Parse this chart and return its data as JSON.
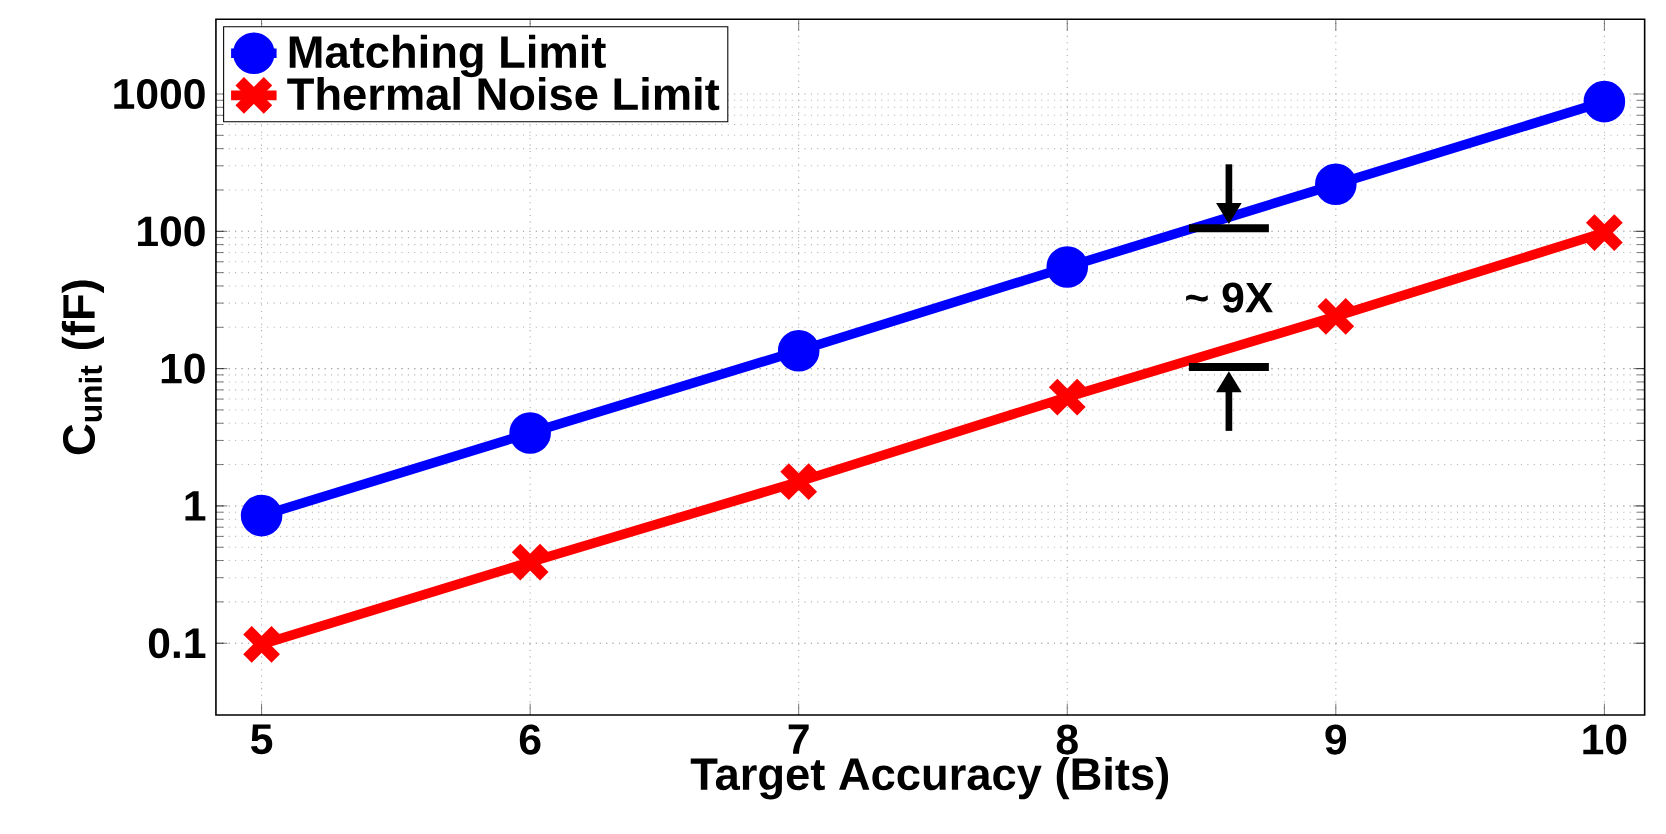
{
  "chart_data": {
    "type": "line",
    "xlabel": "Target Accuracy (Bits)",
    "ylabel": "C$_{unit}$ (fF)",
    "x": [
      5,
      6,
      7,
      8,
      9,
      10
    ],
    "series": [
      {
        "name": "Matching Limit",
        "color": "#0000ff",
        "marker": "circle",
        "values": [
          0.85,
          3.4,
          13.5,
          55,
          220,
          880
        ]
      },
      {
        "name": "Thermal Noise Limit",
        "color": "#ff0000",
        "marker": "cross",
        "values": [
          0.098,
          0.39,
          1.5,
          6.2,
          24,
          98
        ]
      }
    ],
    "annotations": [
      "~ 9X"
    ],
    "log": "y",
    "grid": true,
    "legend": "top left",
    "xlim": [
      4.83,
      10.15
    ],
    "ylim": [
      0.03,
      3500
    ],
    "xticks": [
      5,
      6,
      7,
      8,
      9,
      10
    ],
    "yticks": [
      0.1,
      1,
      10,
      100,
      1000
    ]
  }
}
